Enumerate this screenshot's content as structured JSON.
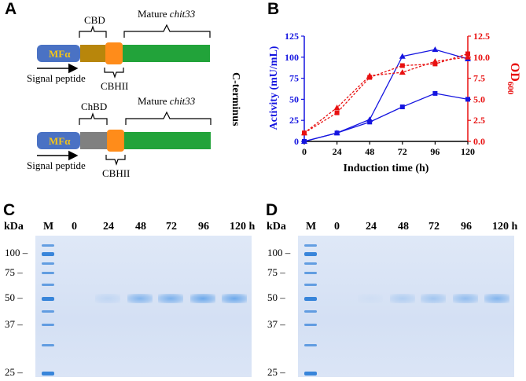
{
  "panels": {
    "A": "A",
    "B": "B",
    "C": "C",
    "D": "D"
  },
  "construct_a": {
    "top": {
      "mf_label": "MFα",
      "domain_label": "CBD",
      "mature_label_prefix": "Mature ",
      "mature_label_gene": "chit33",
      "linker_label": "CBHII",
      "signal_label": "Signal peptide"
    },
    "bottom": {
      "mf_label": "MFα",
      "domain_label": "ChBD",
      "mature_label_prefix": "Mature ",
      "mature_label_gene": "chit33",
      "linker_label": "CBHII",
      "signal_label": "Signal peptide"
    },
    "c_terminus_label": "C-terminus",
    "colors": {
      "mf": "#4a72c4",
      "mf_text": "#f5c518",
      "cbd": "#b8860b",
      "chbd": "#808080",
      "cbhii": "#ff8c1a",
      "mature": "#22a33a"
    }
  },
  "chart_data": {
    "type": "line",
    "x": [
      0,
      24,
      48,
      72,
      96,
      120
    ],
    "xlabel": "Induction time (h)",
    "ylabel_left": "Activity (mU/mL)",
    "ylabel_right_main": "OD",
    "ylabel_right_sub": "600",
    "xlim": [
      0,
      120
    ],
    "ylim_left": [
      0,
      125
    ],
    "ylim_right": [
      0,
      12.5
    ],
    "xticks": [
      "0",
      "24",
      "48",
      "72",
      "96",
      "120"
    ],
    "yticks_left": [
      "0",
      "25",
      "50",
      "75",
      "100",
      "125"
    ],
    "yticks_right": [
      "0.0",
      "2.5",
      "5.0",
      "7.5",
      "10.0",
      "12.5"
    ],
    "series": [
      {
        "axis": "left",
        "color": "#1515e0",
        "marker": "triangle",
        "style": "solid",
        "values": [
          0,
          10,
          26,
          101,
          109,
          98
        ]
      },
      {
        "axis": "left",
        "color": "#1515e0",
        "marker": "square",
        "style": "solid",
        "values": [
          0,
          10,
          23,
          41,
          57,
          50
        ]
      },
      {
        "axis": "right",
        "color": "#e81010",
        "marker": "triangle",
        "style": "dashed",
        "values": [
          1.0,
          4.0,
          7.8,
          8.2,
          9.5,
          10.0
        ]
      },
      {
        "axis": "right",
        "color": "#e81010",
        "marker": "square",
        "style": "dashed",
        "values": [
          1.0,
          3.4,
          7.6,
          9.0,
          9.2,
          10.4
        ]
      }
    ]
  },
  "gels": {
    "kda_label": "kDa",
    "marker_lane": "M",
    "lanes": [
      "0",
      "24",
      "48",
      "72",
      "96",
      "120 h"
    ],
    "mw_marks": [
      "100 –",
      "75 –",
      "50 –",
      "37 –",
      "25 –"
    ],
    "gel_color": "#d9e4f6",
    "band_color": "#3d8fe6",
    "c_band_intensity": [
      0,
      0.15,
      0.55,
      0.6,
      0.7,
      0.7
    ],
    "d_band_intensity": [
      0,
      0.05,
      0.25,
      0.35,
      0.45,
      0.55
    ]
  }
}
